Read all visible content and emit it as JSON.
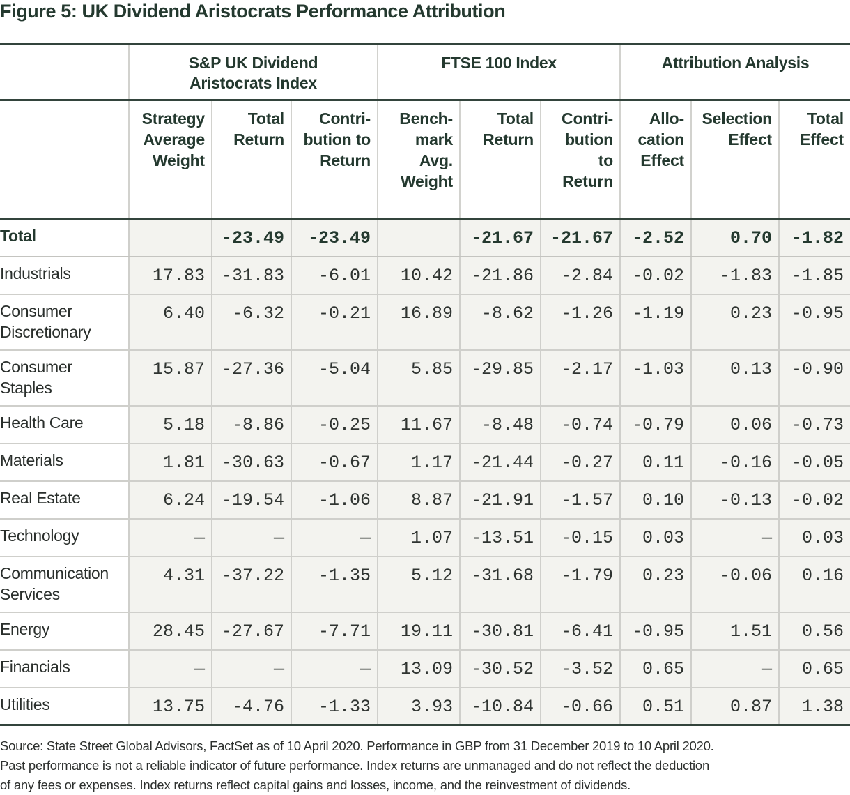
{
  "title": "Figure 5: UK Dividend Aristocrats Performance Attribution",
  "table": {
    "groups": [
      {
        "label": "",
        "span": 1
      },
      {
        "label": "S&P UK Dividend Aristocrats Index",
        "line1": "S&P UK Dividend",
        "line2": "Aristocrats Index",
        "span": 3
      },
      {
        "label": "FTSE 100 Index",
        "line1": "FTSE 100 Index",
        "line2": "",
        "span": 3
      },
      {
        "label": "Attribution Analysis",
        "line1": "Attribution Analysis",
        "line2": "",
        "span": 3
      }
    ],
    "columns": [
      {
        "lines": [
          ""
        ]
      },
      {
        "lines": [
          "Strategy",
          "Average",
          "Weight"
        ]
      },
      {
        "lines": [
          "Total",
          "Return"
        ]
      },
      {
        "lines": [
          "Contri-",
          "bution to",
          "Return"
        ]
      },
      {
        "lines": [
          "Bench-",
          "mark",
          "Avg.",
          "Weight"
        ]
      },
      {
        "lines": [
          "Total",
          "Return"
        ]
      },
      {
        "lines": [
          "Contri-",
          "bution",
          "to",
          "Return"
        ]
      },
      {
        "lines": [
          "Allo-",
          "cation",
          "Effect"
        ]
      },
      {
        "lines": [
          "Selection",
          "Effect"
        ]
      },
      {
        "lines": [
          "Total",
          "Effect"
        ]
      }
    ],
    "rows": [
      {
        "sector": "Total",
        "lines": [
          "Total"
        ],
        "values": [
          "",
          "-23.49",
          "-23.49",
          "",
          "-21.67",
          "-21.67",
          "-2.52",
          "0.70",
          "-1.82"
        ]
      },
      {
        "sector": "Industrials",
        "lines": [
          "Industrials"
        ],
        "values": [
          "17.83",
          "-31.83",
          "-6.01",
          "10.42",
          "-21.86",
          "-2.84",
          "-0.02",
          "-1.83",
          "-1.85"
        ]
      },
      {
        "sector": "Consumer Discretionary",
        "lines": [
          "Consumer",
          "Discretionary"
        ],
        "values": [
          "6.40",
          "-6.32",
          "-0.21",
          "16.89",
          "-8.62",
          "-1.26",
          "-1.19",
          "0.23",
          "-0.95"
        ]
      },
      {
        "sector": "Consumer Staples",
        "lines": [
          "Consumer",
          "Staples"
        ],
        "values": [
          "15.87",
          "-27.36",
          "-5.04",
          "5.85",
          "-29.85",
          "-2.17",
          "-1.03",
          "0.13",
          "-0.90"
        ]
      },
      {
        "sector": "Health Care",
        "lines": [
          "Health Care"
        ],
        "values": [
          "5.18",
          "-8.86",
          "-0.25",
          "11.67",
          "-8.48",
          "-0.74",
          "-0.79",
          "0.06",
          "-0.73"
        ]
      },
      {
        "sector": "Materials",
        "lines": [
          "Materials"
        ],
        "values": [
          "1.81",
          "-30.63",
          "-0.67",
          "1.17",
          "-21.44",
          "-0.27",
          "0.11",
          "-0.16",
          "-0.05"
        ]
      },
      {
        "sector": "Real Estate",
        "lines": [
          "Real Estate"
        ],
        "values": [
          "6.24",
          "-19.54",
          "-1.06",
          "8.87",
          "-21.91",
          "-1.57",
          "0.10",
          "-0.13",
          "-0.02"
        ]
      },
      {
        "sector": "Technology",
        "lines": [
          "Technology"
        ],
        "values": [
          "—",
          "—",
          "—",
          "1.07",
          "-13.51",
          "-0.15",
          "0.03",
          "—",
          "0.03"
        ]
      },
      {
        "sector": "Communication Services",
        "lines": [
          "Communication",
          "Services"
        ],
        "values": [
          "4.31",
          "-37.22",
          "-1.35",
          "5.12",
          "-31.68",
          "-1.79",
          "0.23",
          "-0.06",
          "0.16"
        ]
      },
      {
        "sector": "Energy",
        "lines": [
          "Energy"
        ],
        "values": [
          "28.45",
          "-27.67",
          "-7.71",
          "19.11",
          "-30.81",
          "-6.41",
          "-0.95",
          "1.51",
          "0.56"
        ]
      },
      {
        "sector": "Financials",
        "lines": [
          "Financials"
        ],
        "values": [
          "—",
          "—",
          "—",
          "13.09",
          "-30.52",
          "-3.52",
          "0.65",
          "—",
          "0.65"
        ]
      },
      {
        "sector": "Utilities",
        "lines": [
          "Utilities"
        ],
        "values": [
          "13.75",
          "-4.76",
          "-1.33",
          "3.93",
          "-10.84",
          "-0.66",
          "0.51",
          "0.87",
          "1.38"
        ]
      }
    ]
  },
  "footnote": {
    "lines": [
      "Source: State Street Global Advisors, FactSet as of 10 April 2020. Performance in GBP from 31 December 2019 to 10 April 2020.",
      "Past performance is not a reliable indicator of future performance. Index returns are unmanaged and do not reflect the deduction",
      "of any fees or expenses. Index returns reflect capital gains and losses, income, and the reinvestment of dividends."
    ]
  },
  "colors": {
    "title": "#24392f",
    "rule": "#33443c",
    "divider": "#cfcfcb",
    "cell_bg": "#f3f3ef",
    "label_bg": "#ffffff",
    "text": "#2f3431"
  }
}
